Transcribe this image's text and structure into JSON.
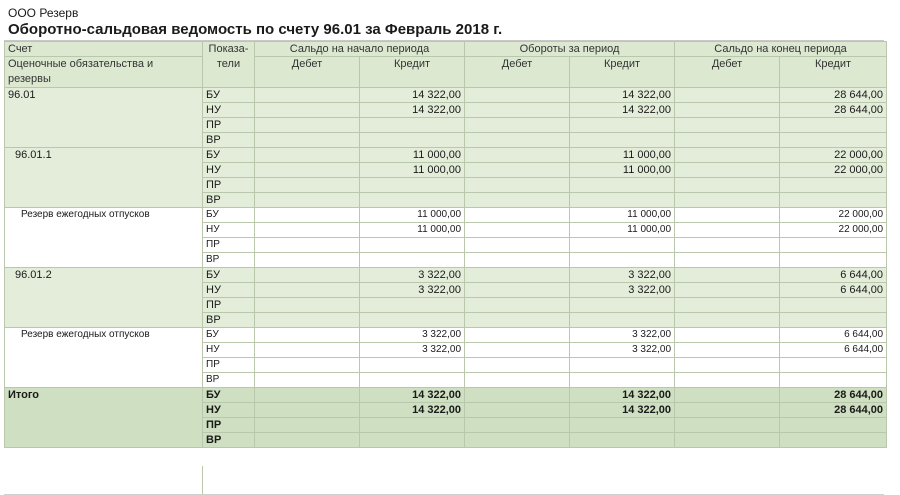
{
  "org_name": "ООО Резерв",
  "report_title": "Оборотно-сальдовая ведомость по счету 96.01 за Февраль 2018 г.",
  "header": {
    "account": "Счет",
    "account_sub": "Оценочные обязательства и резервы",
    "indicators": "Показа-тели",
    "opening": "Сальдо на начало периода",
    "turnover": "Обороты за период",
    "closing": "Сальдо на конец периода",
    "debit": "Дебет",
    "credit": "Кредит"
  },
  "groups": [
    {
      "account": "96.01",
      "level": 0,
      "rows": [
        {
          "ind": "БУ",
          "open_dt": "",
          "open_kt": "14 322,00",
          "turn_dt": "",
          "turn_kt": "14 322,00",
          "close_dt": "",
          "close_kt": "28 644,00"
        },
        {
          "ind": "НУ",
          "open_dt": "",
          "open_kt": "14 322,00",
          "turn_dt": "",
          "turn_kt": "14 322,00",
          "close_dt": "",
          "close_kt": "28 644,00"
        },
        {
          "ind": "ПР",
          "open_dt": "",
          "open_kt": "",
          "turn_dt": "",
          "turn_kt": "",
          "close_dt": "",
          "close_kt": ""
        },
        {
          "ind": "ВР",
          "open_dt": "",
          "open_kt": "",
          "turn_dt": "",
          "turn_kt": "",
          "close_dt": "",
          "close_kt": ""
        }
      ]
    },
    {
      "account": "96.01.1",
      "level": 1,
      "rows": [
        {
          "ind": "БУ",
          "open_dt": "",
          "open_kt": "11 000,00",
          "turn_dt": "",
          "turn_kt": "11 000,00",
          "close_dt": "",
          "close_kt": "22 000,00"
        },
        {
          "ind": "НУ",
          "open_dt": "",
          "open_kt": "11 000,00",
          "turn_dt": "",
          "turn_kt": "11 000,00",
          "close_dt": "",
          "close_kt": "22 000,00"
        },
        {
          "ind": "ПР",
          "open_dt": "",
          "open_kt": "",
          "turn_dt": "",
          "turn_kt": "",
          "close_dt": "",
          "close_kt": ""
        },
        {
          "ind": "ВР",
          "open_dt": "",
          "open_kt": "",
          "turn_dt": "",
          "turn_kt": "",
          "close_dt": "",
          "close_kt": ""
        }
      ]
    },
    {
      "account": "Резерв ежегодных отпусков",
      "level": 2,
      "rows": [
        {
          "ind": "БУ",
          "open_dt": "",
          "open_kt": "11 000,00",
          "turn_dt": "",
          "turn_kt": "11 000,00",
          "close_dt": "",
          "close_kt": "22 000,00"
        },
        {
          "ind": "НУ",
          "open_dt": "",
          "open_kt": "11 000,00",
          "turn_dt": "",
          "turn_kt": "11 000,00",
          "close_dt": "",
          "close_kt": "22 000,00"
        },
        {
          "ind": "ПР",
          "open_dt": "",
          "open_kt": "",
          "turn_dt": "",
          "turn_kt": "",
          "close_dt": "",
          "close_kt": ""
        },
        {
          "ind": "ВР",
          "open_dt": "",
          "open_kt": "",
          "turn_dt": "",
          "turn_kt": "",
          "close_dt": "",
          "close_kt": ""
        }
      ]
    },
    {
      "account": "96.01.2",
      "level": 1,
      "rows": [
        {
          "ind": "БУ",
          "open_dt": "",
          "open_kt": "3 322,00",
          "turn_dt": "",
          "turn_kt": "3 322,00",
          "close_dt": "",
          "close_kt": "6 644,00"
        },
        {
          "ind": "НУ",
          "open_dt": "",
          "open_kt": "3 322,00",
          "turn_dt": "",
          "turn_kt": "3 322,00",
          "close_dt": "",
          "close_kt": "6 644,00"
        },
        {
          "ind": "ПР",
          "open_dt": "",
          "open_kt": "",
          "turn_dt": "",
          "turn_kt": "",
          "close_dt": "",
          "close_kt": ""
        },
        {
          "ind": "ВР",
          "open_dt": "",
          "open_kt": "",
          "turn_dt": "",
          "turn_kt": "",
          "close_dt": "",
          "close_kt": ""
        }
      ]
    },
    {
      "account": "Резерв ежегодных отпусков",
      "level": 2,
      "rows": [
        {
          "ind": "БУ",
          "open_dt": "",
          "open_kt": "3 322,00",
          "turn_dt": "",
          "turn_kt": "3 322,00",
          "close_dt": "",
          "close_kt": "6 644,00"
        },
        {
          "ind": "НУ",
          "open_dt": "",
          "open_kt": "3 322,00",
          "turn_dt": "",
          "turn_kt": "3 322,00",
          "close_dt": "",
          "close_kt": "6 644,00"
        },
        {
          "ind": "ПР",
          "open_dt": "",
          "open_kt": "",
          "turn_dt": "",
          "turn_kt": "",
          "close_dt": "",
          "close_kt": ""
        },
        {
          "ind": "ВР",
          "open_dt": "",
          "open_kt": "",
          "turn_dt": "",
          "turn_kt": "",
          "close_dt": "",
          "close_kt": ""
        }
      ]
    },
    {
      "account": "Итого",
      "level": "total",
      "rows": [
        {
          "ind": "БУ",
          "open_dt": "",
          "open_kt": "14 322,00",
          "turn_dt": "",
          "turn_kt": "14 322,00",
          "close_dt": "",
          "close_kt": "28 644,00"
        },
        {
          "ind": "НУ",
          "open_dt": "",
          "open_kt": "14 322,00",
          "turn_dt": "",
          "turn_kt": "14 322,00",
          "close_dt": "",
          "close_kt": "28 644,00"
        },
        {
          "ind": "ПР",
          "open_dt": "",
          "open_kt": "",
          "turn_dt": "",
          "turn_kt": "",
          "close_dt": "",
          "close_kt": ""
        },
        {
          "ind": "ВР",
          "open_dt": "",
          "open_kt": "",
          "turn_dt": "",
          "turn_kt": "",
          "close_dt": "",
          "close_kt": ""
        }
      ]
    }
  ]
}
